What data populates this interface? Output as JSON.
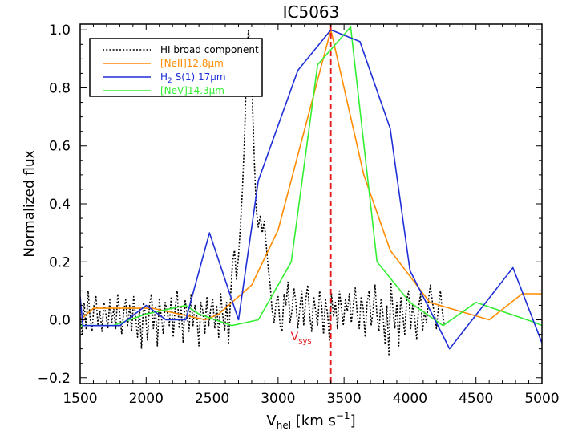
{
  "chart_data": {
    "type": "line",
    "title": "IC5063",
    "xlabel": {
      "main": "V",
      "sub": "hel",
      "units_pre": " [km s",
      "units_sup": "−1",
      "units_post": "]"
    },
    "ylabel": "Normalized flux",
    "xlim": [
      1500,
      5000
    ],
    "ylim": [
      -0.22,
      1.02
    ],
    "xticks": [
      1500,
      2000,
      2500,
      3000,
      3500,
      4000,
      4500,
      5000
    ],
    "yticks": [
      -0.2,
      0.0,
      0.2,
      0.4,
      0.6,
      0.8,
      1.0
    ],
    "ytick_labels": [
      "−0.2",
      "0.0",
      "0.2",
      "0.4",
      "0.6",
      "0.8",
      "1.0"
    ],
    "legend_position": "top-left",
    "vline": {
      "x": 3400,
      "color": "#e41a1c",
      "label": "V",
      "label_sub": "sys",
      "label_y": -0.07
    },
    "series": [
      {
        "name": "HI broad component",
        "legend": {
          "main": "HI broad component"
        },
        "color": "#000000",
        "dash": "2,2.2",
        "x": [
          1500,
          1515,
          1530,
          1545,
          1560,
          1575,
          1590,
          1605,
          1620,
          1635,
          1650,
          1665,
          1680,
          1695,
          1710,
          1725,
          1740,
          1755,
          1770,
          1785,
          1800,
          1815,
          1830,
          1845,
          1860,
          1875,
          1890,
          1905,
          1920,
          1935,
          1950,
          1965,
          1980,
          1995,
          2010,
          2025,
          2040,
          2055,
          2070,
          2085,
          2100,
          2115,
          2130,
          2145,
          2160,
          2175,
          2190,
          2205,
          2220,
          2235,
          2250,
          2265,
          2280,
          2295,
          2310,
          2325,
          2340,
          2355,
          2370,
          2385,
          2400,
          2415,
          2430,
          2445,
          2460,
          2475,
          2490,
          2505,
          2520,
          2535,
          2550,
          2565,
          2580,
          2595,
          2610,
          2625,
          2640,
          2655,
          2670,
          2685,
          2700,
          2715,
          2730,
          2745,
          2760,
          2775,
          2790,
          2805,
          2820,
          2835,
          2850,
          2865,
          2880,
          2895,
          2910,
          2925,
          2940,
          2955,
          2970,
          2985,
          3000,
          3015,
          3030,
          3045,
          3060,
          3075,
          3090,
          3105,
          3120,
          3135,
          3150,
          3165,
          3180,
          3195,
          3210,
          3225,
          3240,
          3255,
          3270,
          3285,
          3300,
          3315,
          3330,
          3345,
          3360,
          3375,
          3390,
          3405,
          3420,
          3435,
          3450,
          3465,
          3480,
          3495,
          3510,
          3525,
          3540,
          3555,
          3570,
          3585,
          3600,
          3615,
          3630,
          3645,
          3660,
          3675,
          3690,
          3705,
          3720,
          3735,
          3750,
          3765,
          3780,
          3795,
          3810,
          3825,
          3840,
          3855,
          3870,
          3885,
          3900,
          3915,
          3930,
          3945,
          3960,
          3975,
          3990,
          4005,
          4020,
          4035,
          4050,
          4065,
          4080,
          4095,
          4110,
          4125,
          4140,
          4155,
          4170,
          4185,
          4200,
          4215,
          4230,
          4245,
          4260
        ],
        "y": [
          0.02,
          -0.05,
          0.06,
          -0.03,
          0.1,
          0.01,
          -0.04,
          0.05,
          0.08,
          -0.02,
          0.03,
          -0.04,
          0.06,
          0.02,
          -0.03,
          0.07,
          -0.01,
          0.04,
          -0.03,
          0.09,
          0.02,
          -0.05,
          0.03,
          0.07,
          -0.02,
          0.05,
          -0.04,
          0.08,
          0.01,
          -0.06,
          0.04,
          -0.1,
          0.06,
          0.02,
          -0.07,
          0.05,
          0.09,
          -0.03,
          0.04,
          -0.09,
          0.07,
          0.01,
          -0.05,
          0.06,
          0.03,
          -0.02,
          0.08,
          -0.06,
          0.04,
          0.1,
          -0.03,
          0.05,
          -0.08,
          0.07,
          0.02,
          -0.04,
          0.09,
          -0.02,
          0.05,
          0.01,
          -0.09,
          0.06,
          0.03,
          -0.05,
          0.08,
          -0.02,
          0.04,
          0.07,
          -0.03,
          0.05,
          -0.06,
          0.09,
          0.02,
          -0.04,
          0.06,
          -0.08,
          0.08,
          0.2,
          0.24,
          0.14,
          0.22,
          0.33,
          0.45,
          0.62,
          0.85,
          1.0,
          0.93,
          0.76,
          0.55,
          0.38,
          0.32,
          0.36,
          0.3,
          0.34,
          0.26,
          0.18,
          0.12,
          0.03,
          -0.01,
          0.06,
          0.08,
          -0.02,
          -0.04,
          0.09,
          0.05,
          0.13,
          -0.01,
          0.03,
          0.11,
          0.06,
          -0.03,
          0.04,
          0.1,
          -0.02,
          0.07,
          0.12,
          0.01,
          -0.04,
          0.08,
          0.03,
          -0.02,
          0.1,
          0.05,
          -0.05,
          0.07,
          0.02,
          -0.07,
          0.09,
          0.01,
          0.06,
          -0.03,
          0.1,
          0.04,
          -0.02,
          0.07,
          0.03,
          0.09,
          -0.01,
          0.05,
          0.11,
          0.02,
          -0.03,
          0.08,
          0.04,
          -0.06,
          0.06,
          0.1,
          -0.02,
          0.03,
          0.12,
          0.01,
          -0.04,
          0.07,
          0.02,
          -0.08,
          0.05,
          -0.12,
          0.13,
          0.04,
          -0.03,
          0.06,
          -0.09,
          0.08,
          0.02,
          -0.05,
          0.07,
          0.1,
          -0.03,
          0.05,
          0.01,
          -0.07,
          0.04,
          0.09,
          -0.04,
          0.03,
          -0.01,
          0.07,
          0.12,
          0.06,
          0.02,
          -0.03,
          0.04,
          0.1,
          0.03,
          -0.02
        ]
      },
      {
        "name": "[NeII]12.8μm",
        "legend": {
          "main": "[NeII]12.8μm"
        },
        "color": "#ff8c00",
        "dash": "",
        "x": [
          1500,
          1600,
          2050,
          2450,
          2550,
          2800,
          3000,
          3400,
          3650,
          3850,
          4150,
          4600,
          4850,
          5000
        ],
        "y": [
          0.0,
          0.04,
          0.04,
          0.0,
          0.02,
          0.12,
          0.31,
          1.0,
          0.5,
          0.24,
          0.06,
          0.0,
          0.09,
          0.09
        ]
      },
      {
        "name": "H2 S(1) 17μm",
        "legend": {
          "main": "H",
          "sub": "2",
          "rest": " S(1) 17μm"
        },
        "color": "#1f2fd6",
        "dash": "",
        "x": [
          1500,
          1520,
          1800,
          2000,
          2150,
          2300,
          2480,
          2700,
          2850,
          3150,
          3400,
          3620,
          3850,
          4000,
          4300,
          4780,
          5000
        ],
        "y": [
          0.08,
          -0.02,
          -0.02,
          0.05,
          0.0,
          0.0,
          0.3,
          0.0,
          0.48,
          0.86,
          1.0,
          0.96,
          0.66,
          0.17,
          -0.1,
          0.18,
          -0.08
        ]
      },
      {
        "name": "[NeV]14.3μm",
        "legend": {
          "main": "[NeV]14.3μm"
        },
        "color": "#33ee33",
        "dash": "",
        "x": [
          1500,
          1750,
          2000,
          2300,
          2400,
          2650,
          2850,
          3100,
          3300,
          3550,
          3750,
          4000,
          4250,
          4500,
          4950,
          5000
        ],
        "y": [
          -0.02,
          -0.02,
          0.02,
          0.05,
          0.02,
          -0.02,
          0.0,
          0.2,
          0.88,
          1.01,
          0.2,
          0.06,
          -0.02,
          0.06,
          -0.01,
          -0.02
        ]
      }
    ]
  }
}
